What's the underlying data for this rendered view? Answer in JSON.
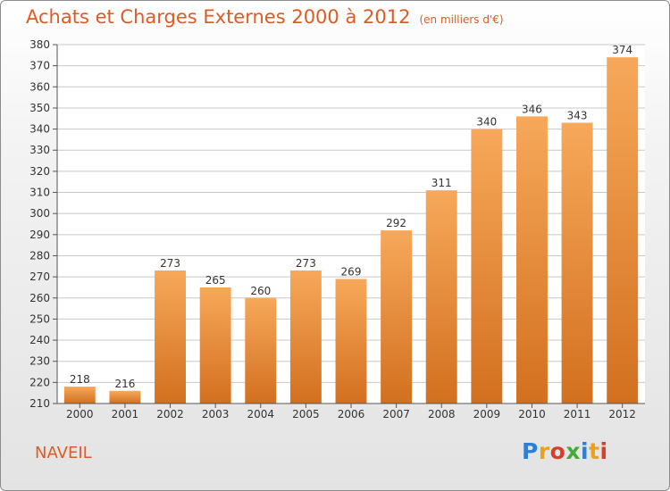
{
  "header": {
    "title": "Achats et Charges Externes 2000 à 2012",
    "subtitle": "(en milliers d'€)"
  },
  "footer": {
    "commune": "NAVEIL",
    "logo": {
      "letters": [
        "P",
        "r",
        "o",
        "x",
        "i",
        "t",
        "i"
      ],
      "colors": [
        "#2f7fd0",
        "#e8a21c",
        "#d4402c",
        "#49a83a",
        "#2f7fd0",
        "#e8a21c",
        "#d4402c"
      ]
    }
  },
  "colors": {
    "accent": "#e05a24",
    "bar_top": "#f7a85a",
    "bar_bottom": "#d2701f",
    "grid": "#c8c8c8"
  },
  "chart_data": {
    "type": "bar",
    "title": "Achats et Charges Externes 2000 à 2012",
    "categories": [
      "2000",
      "2001",
      "2002",
      "2003",
      "2004",
      "2005",
      "2006",
      "2007",
      "2008",
      "2009",
      "2010",
      "2011",
      "2012"
    ],
    "values": [
      218,
      216,
      273,
      265,
      260,
      273,
      269,
      292,
      311,
      340,
      346,
      343,
      374
    ],
    "ylim": [
      210,
      380
    ],
    "yticks": [
      210,
      220,
      230,
      240,
      250,
      260,
      270,
      280,
      290,
      300,
      310,
      320,
      330,
      340,
      350,
      360,
      370,
      380
    ],
    "grid": true,
    "data_labels": true
  }
}
